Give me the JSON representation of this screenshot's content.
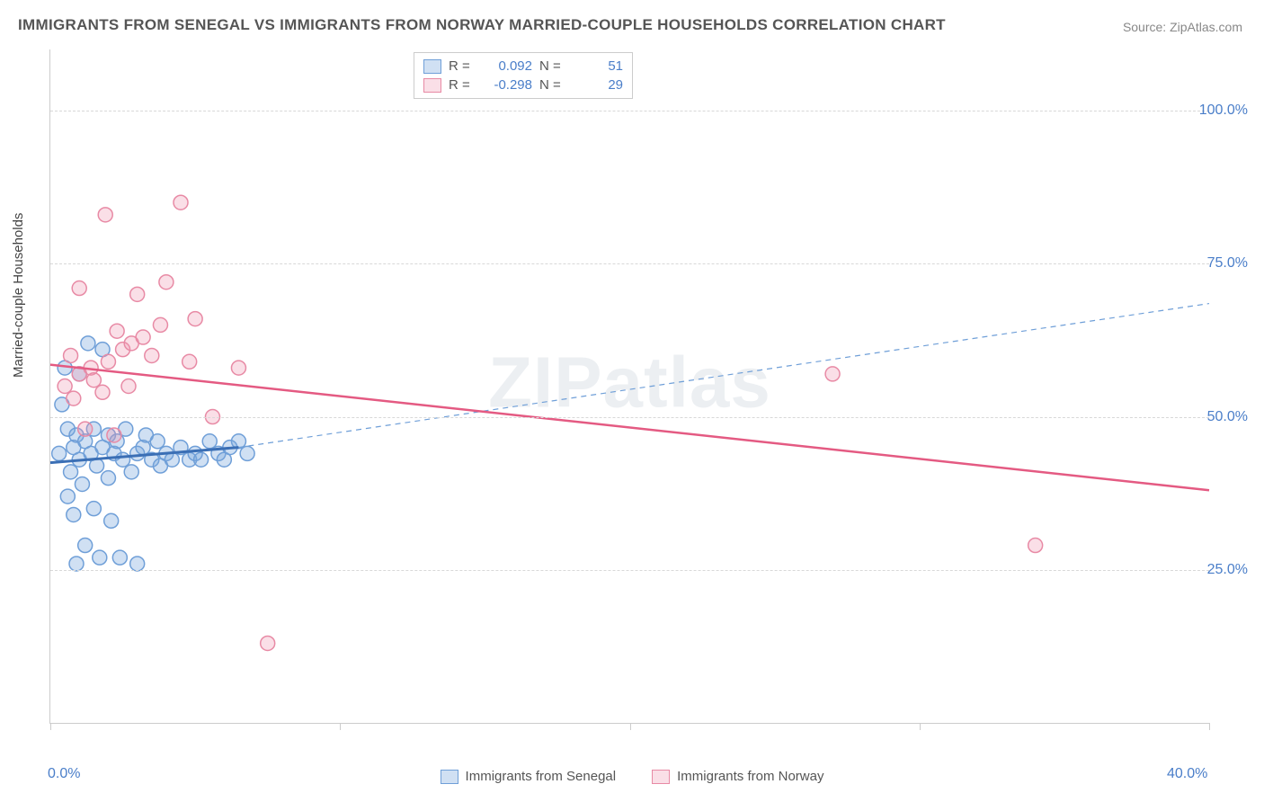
{
  "title": "IMMIGRANTS FROM SENEGAL VS IMMIGRANTS FROM NORWAY MARRIED-COUPLE HOUSEHOLDS CORRELATION CHART",
  "source": "Source: ZipAtlas.com",
  "watermark": "ZIPatlas",
  "ylabel": "Married-couple Households",
  "chart": {
    "type": "scatter",
    "background_color": "#ffffff",
    "grid_color": "#d8d8d8",
    "axis_color": "#cccccc",
    "text_color": "#555555",
    "tick_label_color": "#4a7ec9",
    "title_fontsize": 17,
    "label_fontsize": 15,
    "tick_fontsize": 16,
    "xlim": [
      0,
      40
    ],
    "ylim": [
      0,
      110
    ],
    "ytick_values": [
      25,
      50,
      75,
      100
    ],
    "ytick_labels": [
      "25.0%",
      "50.0%",
      "75.0%",
      "100.0%"
    ],
    "xtick_values": [
      0,
      10,
      20,
      30,
      40
    ],
    "xtick_labels": [
      "0.0%",
      "",
      "",
      "",
      "40.0%"
    ],
    "marker_radius": 8,
    "marker_stroke_width": 1.5,
    "series": [
      {
        "name": "Immigrants from Senegal",
        "fill_color": "rgba(120,165,220,0.35)",
        "stroke_color": "#6f9fd8",
        "r_value": "0.092",
        "n_value": "51",
        "trend": {
          "x1": 0,
          "y1": 42.5,
          "x2": 6.5,
          "y2": 45.0,
          "extend_x2": 40,
          "extend_y2": 68.5,
          "solid_color": "#3b6fb5",
          "solid_width": 3,
          "dash_color": "#6f9fd8",
          "dash_width": 1.2,
          "dash_pattern": "6,5"
        },
        "points": [
          [
            0.3,
            44
          ],
          [
            0.4,
            52
          ],
          [
            0.5,
            58
          ],
          [
            0.6,
            37
          ],
          [
            0.6,
            48
          ],
          [
            0.7,
            41
          ],
          [
            0.8,
            45
          ],
          [
            0.8,
            34
          ],
          [
            0.9,
            47
          ],
          [
            0.9,
            26
          ],
          [
            1.0,
            43
          ],
          [
            1.0,
            57
          ],
          [
            1.1,
            39
          ],
          [
            1.2,
            46
          ],
          [
            1.2,
            29
          ],
          [
            1.3,
            62
          ],
          [
            1.4,
            44
          ],
          [
            1.5,
            48
          ],
          [
            1.5,
            35
          ],
          [
            1.6,
            42
          ],
          [
            1.7,
            27
          ],
          [
            1.8,
            45
          ],
          [
            1.8,
            61
          ],
          [
            2.0,
            40
          ],
          [
            2.0,
            47
          ],
          [
            2.1,
            33
          ],
          [
            2.2,
            44
          ],
          [
            2.3,
            46
          ],
          [
            2.4,
            27
          ],
          [
            2.5,
            43
          ],
          [
            2.6,
            48
          ],
          [
            2.8,
            41
          ],
          [
            3.0,
            44
          ],
          [
            3.0,
            26
          ],
          [
            3.2,
            45
          ],
          [
            3.3,
            47
          ],
          [
            3.5,
            43
          ],
          [
            3.7,
            46
          ],
          [
            3.8,
            42
          ],
          [
            4.0,
            44
          ],
          [
            4.2,
            43
          ],
          [
            4.5,
            45
          ],
          [
            4.8,
            43
          ],
          [
            5.0,
            44
          ],
          [
            5.2,
            43
          ],
          [
            5.5,
            46
          ],
          [
            5.8,
            44
          ],
          [
            6.0,
            43
          ],
          [
            6.2,
            45
          ],
          [
            6.5,
            46
          ],
          [
            6.8,
            44
          ]
        ]
      },
      {
        "name": "Immigrants from Norway",
        "fill_color": "rgba(240,150,175,0.30)",
        "stroke_color": "#e88aa5",
        "r_value": "-0.298",
        "n_value": "29",
        "trend": {
          "x1": 0,
          "y1": 58.5,
          "x2": 40,
          "y2": 38.0,
          "solid_color": "#e45a82",
          "solid_width": 2.5
        },
        "points": [
          [
            0.5,
            55
          ],
          [
            0.7,
            60
          ],
          [
            0.8,
            53
          ],
          [
            1.0,
            71
          ],
          [
            1.0,
            57
          ],
          [
            1.2,
            48
          ],
          [
            1.4,
            58
          ],
          [
            1.5,
            56
          ],
          [
            1.8,
            54
          ],
          [
            1.9,
            83
          ],
          [
            2.0,
            59
          ],
          [
            2.2,
            47
          ],
          [
            2.5,
            61
          ],
          [
            2.7,
            55
          ],
          [
            2.8,
            62
          ],
          [
            3.0,
            70
          ],
          [
            3.2,
            63
          ],
          [
            3.5,
            60
          ],
          [
            3.8,
            65
          ],
          [
            4.0,
            72
          ],
          [
            4.5,
            85
          ],
          [
            4.8,
            59
          ],
          [
            5.0,
            66
          ],
          [
            5.6,
            50
          ],
          [
            6.5,
            58
          ],
          [
            7.5,
            13
          ],
          [
            27.0,
            57
          ],
          [
            34.0,
            29
          ],
          [
            2.3,
            64
          ]
        ]
      }
    ]
  },
  "legend": {
    "stats_labels": {
      "r": "R  =",
      "n": "N  ="
    }
  }
}
